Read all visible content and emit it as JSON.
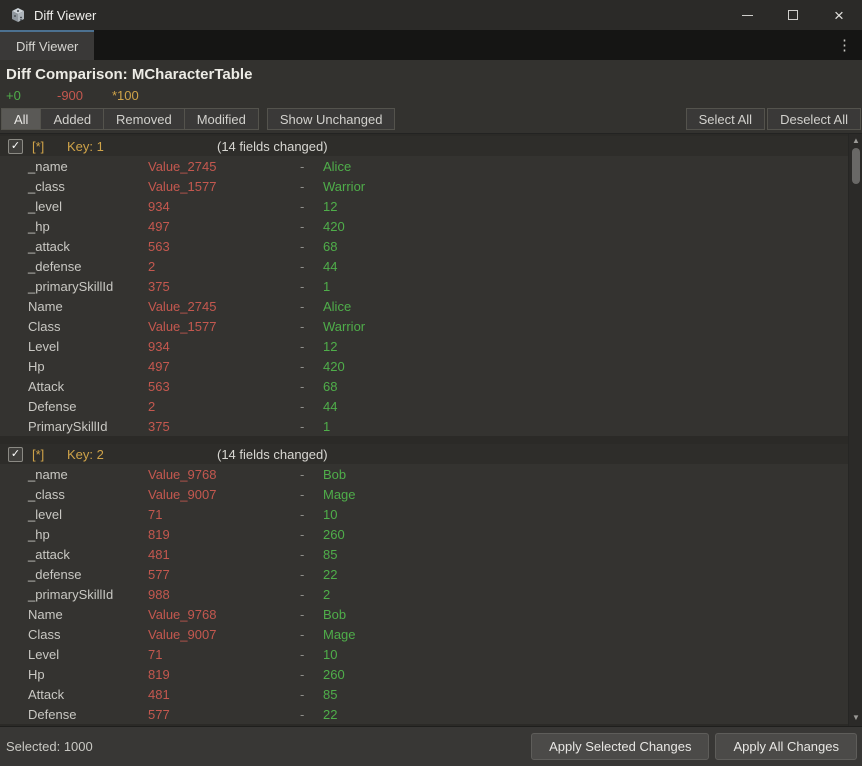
{
  "window": {
    "title": "Diff Viewer"
  },
  "tab": {
    "label": "Diff Viewer"
  },
  "header": {
    "title": "Diff Comparison: MCharacterTable",
    "stats": {
      "added": "+0",
      "removed": "-900",
      "modified": "*100"
    }
  },
  "toolbar": {
    "filters": [
      {
        "label": "All",
        "active": true
      },
      {
        "label": "Added",
        "active": false
      },
      {
        "label": "Removed",
        "active": false
      },
      {
        "label": "Modified",
        "active": false
      }
    ],
    "show_unchanged_label": "Show Unchanged",
    "select_all_label": "Select All",
    "deselect_all_label": "Deselect All"
  },
  "list": {
    "separator": "-",
    "groups": [
      {
        "checked": true,
        "marker": "[*]",
        "key_label": "Key: 1",
        "summary": "(14 fields changed)",
        "fields": [
          {
            "name": "_name",
            "old": "Value_2745",
            "new": "Alice"
          },
          {
            "name": "_class",
            "old": "Value_1577",
            "new": "Warrior"
          },
          {
            "name": "_level",
            "old": "934",
            "new": "12"
          },
          {
            "name": "_hp",
            "old": "497",
            "new": "420"
          },
          {
            "name": "_attack",
            "old": "563",
            "new": "68"
          },
          {
            "name": "_defense",
            "old": "2",
            "new": "44"
          },
          {
            "name": "_primarySkillId",
            "old": "375",
            "new": "1"
          },
          {
            "name": "Name",
            "old": "Value_2745",
            "new": "Alice"
          },
          {
            "name": "Class",
            "old": "Value_1577",
            "new": "Warrior"
          },
          {
            "name": "Level",
            "old": "934",
            "new": "12"
          },
          {
            "name": "Hp",
            "old": "497",
            "new": "420"
          },
          {
            "name": "Attack",
            "old": "563",
            "new": "68"
          },
          {
            "name": "Defense",
            "old": "2",
            "new": "44"
          },
          {
            "name": "PrimarySkillId",
            "old": "375",
            "new": "1"
          }
        ]
      },
      {
        "checked": true,
        "marker": "[*]",
        "key_label": "Key: 2",
        "summary": "(14 fields changed)",
        "fields": [
          {
            "name": "_name",
            "old": "Value_9768",
            "new": "Bob"
          },
          {
            "name": "_class",
            "old": "Value_9007",
            "new": "Mage"
          },
          {
            "name": "_level",
            "old": "71",
            "new": "10"
          },
          {
            "name": "_hp",
            "old": "819",
            "new": "260"
          },
          {
            "name": "_attack",
            "old": "481",
            "new": "85"
          },
          {
            "name": "_defense",
            "old": "577",
            "new": "22"
          },
          {
            "name": "_primarySkillId",
            "old": "988",
            "new": "2"
          },
          {
            "name": "Name",
            "old": "Value_9768",
            "new": "Bob"
          },
          {
            "name": "Class",
            "old": "Value_9007",
            "new": "Mage"
          },
          {
            "name": "Level",
            "old": "71",
            "new": "10"
          },
          {
            "name": "Hp",
            "old": "819",
            "new": "260"
          },
          {
            "name": "Attack",
            "old": "481",
            "new": "85"
          },
          {
            "name": "Defense",
            "old": "577",
            "new": "22"
          }
        ]
      }
    ]
  },
  "footer": {
    "selected_label": "Selected: 1000",
    "apply_selected_label": "Apply Selected Changes",
    "apply_all_label": "Apply All Changes"
  },
  "colors": {
    "added_green": "#4fae4a",
    "removed_red": "#c4584f",
    "modified_gold": "#cfa349",
    "tab_accent_blue": "#4c7191"
  }
}
